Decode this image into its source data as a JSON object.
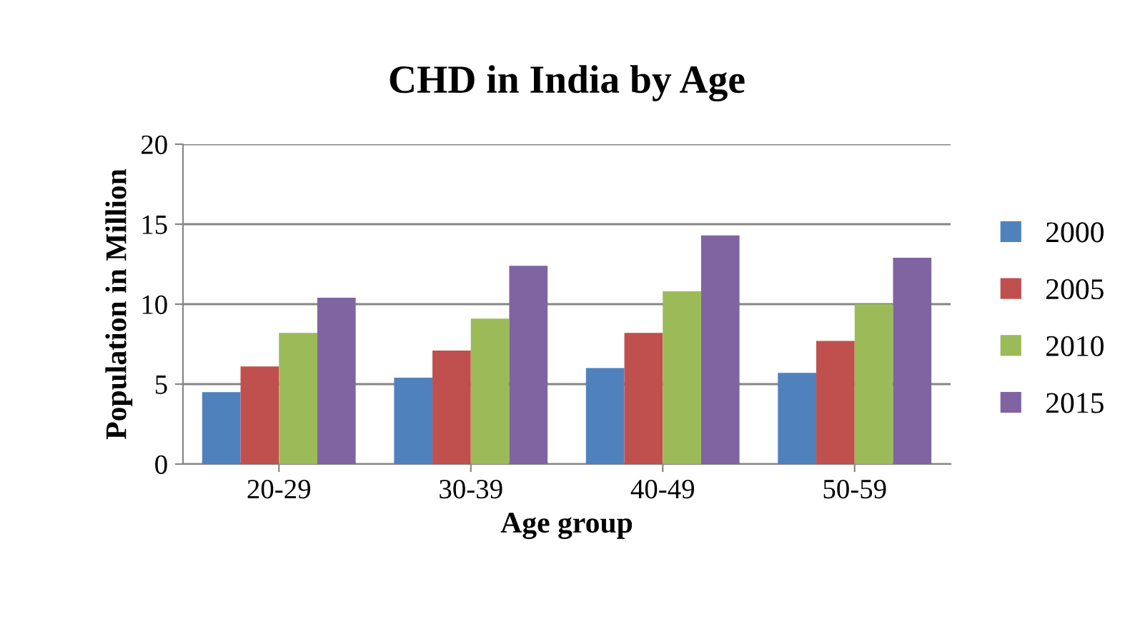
{
  "chart_data": {
    "type": "bar",
    "title": "CHD in India by Age",
    "xlabel": "Age group",
    "ylabel": "Population in Million",
    "categories": [
      "20-29",
      "30-39",
      "40-49",
      "50-59"
    ],
    "series": [
      {
        "name": "2000",
        "color": "#4f81bd",
        "values": [
          4.5,
          5.4,
          6.0,
          5.7
        ]
      },
      {
        "name": "2005",
        "color": "#c0504d",
        "values": [
          6.1,
          7.1,
          8.2,
          7.7
        ]
      },
      {
        "name": "2010",
        "color": "#9bbb59",
        "values": [
          8.2,
          9.1,
          10.8,
          10.0
        ]
      },
      {
        "name": "2015",
        "color": "#8064a2",
        "values": [
          10.4,
          12.4,
          14.3,
          12.9
        ]
      }
    ],
    "ylim": [
      0,
      20
    ],
    "yticks": [
      0,
      5,
      10,
      15,
      20
    ],
    "grid": "y",
    "legend": "right"
  }
}
